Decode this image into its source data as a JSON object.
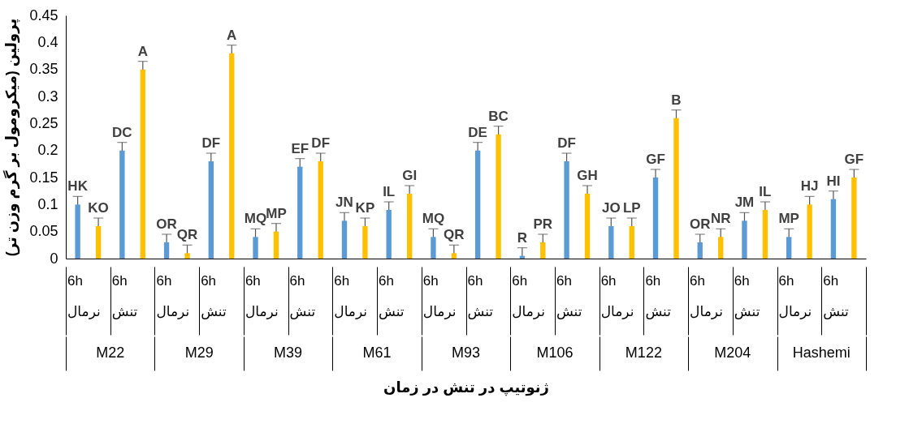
{
  "chart_data": {
    "type": "bar",
    "categories": [
      "6h\nنرمال",
      "6h\nتنش",
      "6h\nنرمال",
      "6h\nتنش",
      "6h\nنرمال",
      "6h\nتنش",
      "6h\nنرمال",
      "6h\nتنش",
      "6h\nنرمال",
      "6h\nتنش",
      "6h\nنرمال",
      "6h\nتنش",
      "6h\nنرمال",
      "6h\nتنش",
      "6h\nنرمال",
      "6h\nتنش",
      "6h\nنرمال",
      "6h\nتنش"
    ],
    "annotations": [
      "M22",
      "M29",
      "M39",
      "M61",
      "M93",
      "M106",
      "M122",
      "M204",
      "Hashemi"
    ],
    "xlabel": "ژنوتیپ در تنش در زمان",
    "ylabel": "پرولین (میکرومول بر گرم وزن تر)",
    "ylim": [
      0,
      0.45
    ],
    "yticks": [
      0,
      0.05,
      0.1,
      0.15,
      0.2,
      0.25,
      0.3,
      0.35,
      0.4,
      0.45
    ],
    "grid": false,
    "legend": false,
    "series": [
      {
        "color": "#5b9bd5",
        "values": [
          0.1,
          0.2,
          0.03,
          0.18,
          0.04,
          0.17,
          0.07,
          0.09,
          0.04,
          0.2,
          0.005,
          0.18,
          0.06,
          0.15,
          0.03,
          0.07,
          0.04,
          0.11
        ],
        "errors": [
          0.015,
          0.015,
          0.015,
          0.015,
          0.015,
          0.015,
          0.015,
          0.015,
          0.015,
          0.015,
          0.015,
          0.015,
          0.015,
          0.015,
          0.015,
          0.015,
          0.015,
          0.015
        ],
        "value_labels": [
          "HK",
          "DC",
          "OR",
          "DF",
          "MQ",
          "EF",
          "JN",
          "IL",
          "MQ",
          "DE",
          "R",
          "DF",
          "JO",
          "GF",
          "OR",
          "JM",
          "MP",
          "HI"
        ]
      },
      {
        "color": "#ffc000",
        "values": [
          0.06,
          0.35,
          0.01,
          0.38,
          0.05,
          0.18,
          0.06,
          0.12,
          0.01,
          0.23,
          0.03,
          0.12,
          0.06,
          0.26,
          0.04,
          0.09,
          0.1,
          0.15
        ],
        "errors": [
          0.015,
          0.015,
          0.015,
          0.015,
          0.015,
          0.015,
          0.015,
          0.015,
          0.015,
          0.015,
          0.015,
          0.015,
          0.015,
          0.015,
          0.015,
          0.015,
          0.015,
          0.015
        ],
        "value_labels": [
          "KO",
          "A",
          "QR",
          "A",
          "MP",
          "DF",
          "KP",
          "GI",
          "QR",
          "BC",
          "PR",
          "GH",
          "LP",
          "B",
          "NR",
          "IL",
          "HJ",
          "GF"
        ]
      }
    ]
  }
}
